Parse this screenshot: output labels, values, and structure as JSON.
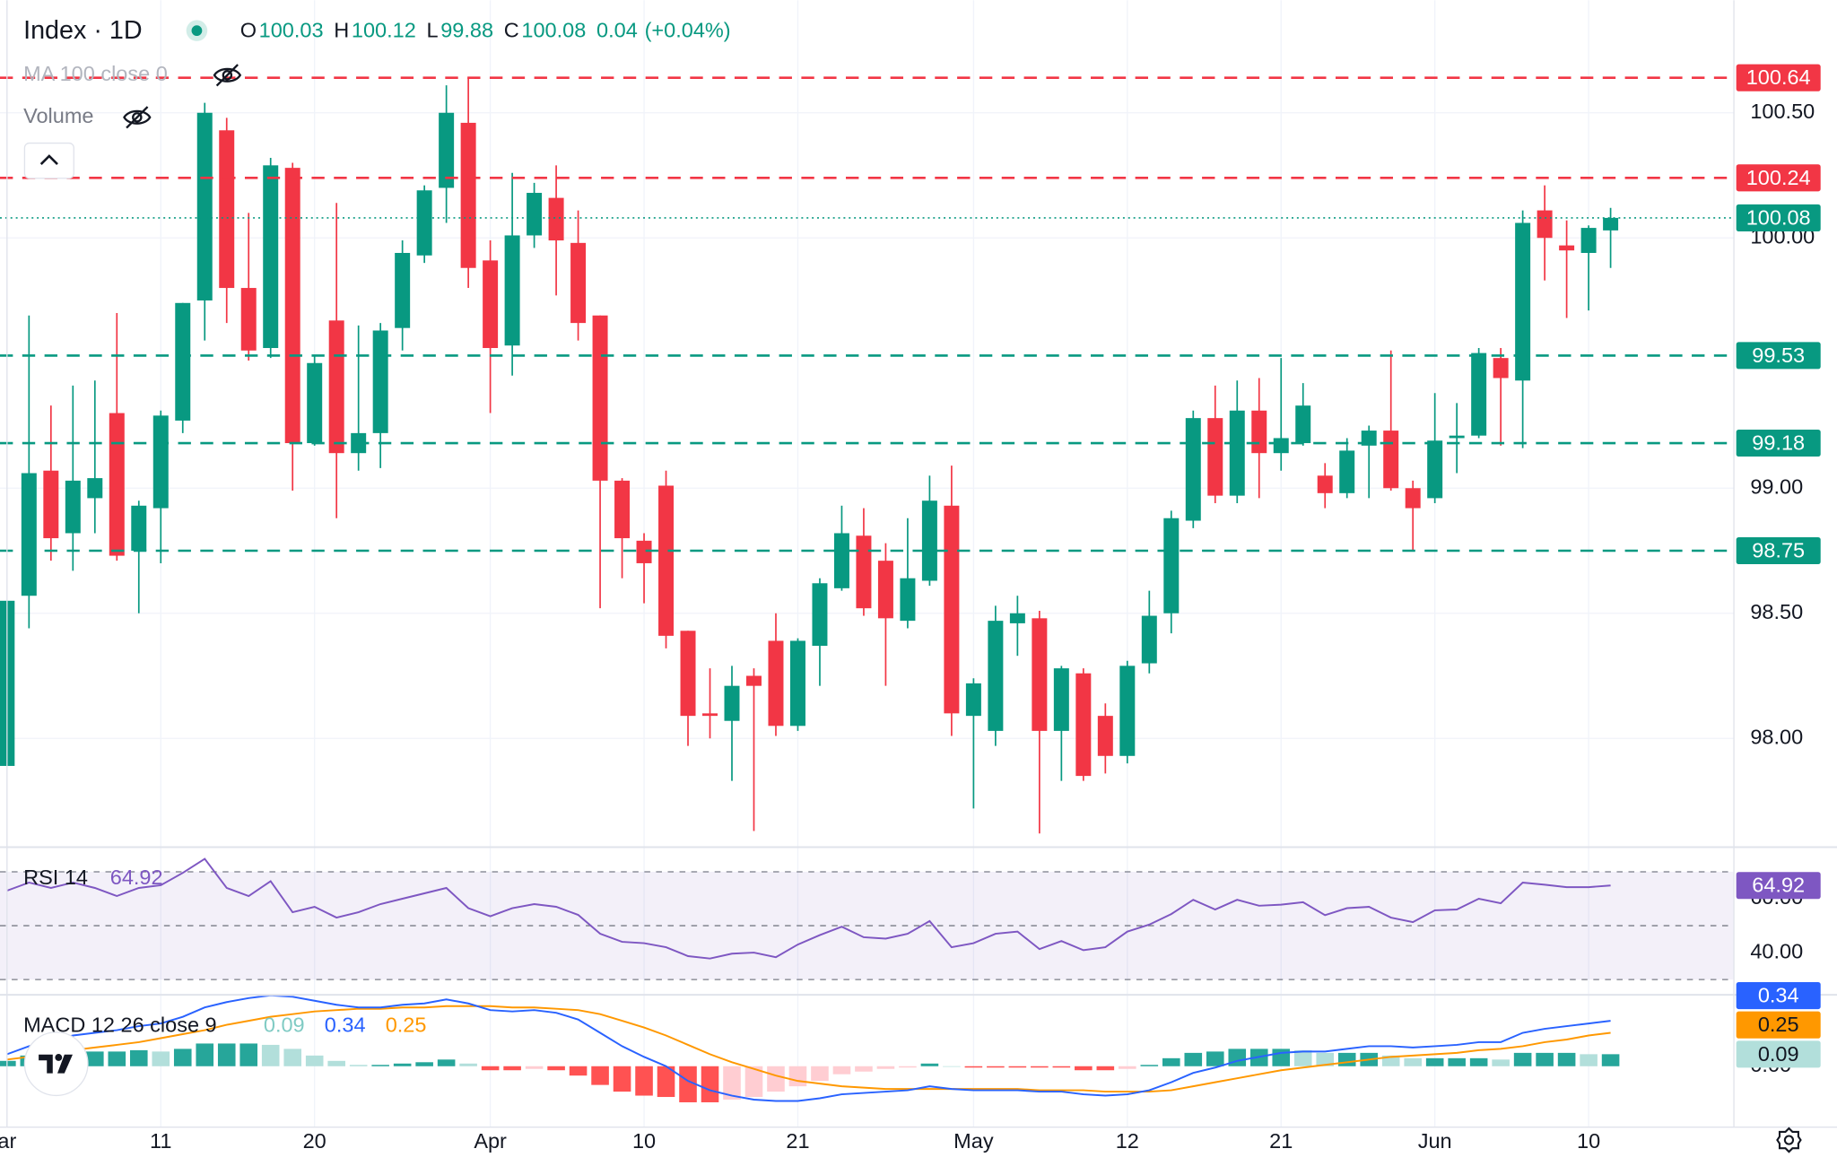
{
  "chart_data": [
    {
      "type": "candlestick",
      "title": "Index · 1D",
      "ohlc_labels": [
        "O",
        "H",
        "L",
        "C"
      ],
      "change": "0.04",
      "change_pct": "(+0.04%)",
      "indicator_labels": [
        "MA 100 close 0",
        "Volume"
      ],
      "categories": [
        "ar",
        null,
        null,
        null,
        null,
        null,
        null,
        "11",
        null,
        null,
        null,
        null,
        null,
        null,
        "20",
        null,
        null,
        null,
        null,
        null,
        null,
        null,
        "Apr",
        null,
        null,
        null,
        null,
        null,
        null,
        "10",
        null,
        null,
        null,
        null,
        null,
        null,
        "21",
        null,
        null,
        null,
        null,
        null,
        null,
        null,
        "May",
        null,
        null,
        null,
        null,
        null,
        null,
        "12",
        null,
        null,
        null,
        null,
        null,
        null,
        "21",
        null,
        null,
        null,
        null,
        null,
        null,
        "Jun",
        null,
        null,
        null,
        null,
        null,
        null,
        "10",
        null
      ],
      "open": [
        97.89,
        98.57,
        99.07,
        98.82,
        98.96,
        99.3,
        98.75,
        98.92,
        99.27,
        99.75,
        100.43,
        99.8,
        99.56,
        100.28,
        99.18,
        99.67,
        99.14,
        99.22,
        99.64,
        99.93,
        100.2,
        100.46,
        99.91,
        99.57,
        100.01,
        100.16,
        99.98,
        99.69,
        99.03,
        98.79,
        99.01,
        98.43,
        98.1,
        98.07,
        98.25,
        98.39,
        98.05,
        98.37,
        98.6,
        98.81,
        98.71,
        98.47,
        98.63,
        98.93,
        98.09,
        98.03,
        98.46,
        98.48,
        98.03,
        98.26,
        98.09,
        97.93,
        98.3,
        98.5,
        98.87,
        99.28,
        98.97,
        99.31,
        99.14,
        99.18,
        99.05,
        98.98,
        99.17,
        99.23,
        99.0,
        98.96,
        99.2,
        99.21,
        99.52,
        99.43,
        100.11,
        99.97,
        99.94,
        100.03
      ],
      "high": [
        98.55,
        99.69,
        99.33,
        99.41,
        99.43,
        99.7,
        98.95,
        99.31,
        99.74,
        100.54,
        100.48,
        100.1,
        100.32,
        100.3,
        99.53,
        100.14,
        99.65,
        99.66,
        99.99,
        100.21,
        100.61,
        100.64,
        99.99,
        100.26,
        100.22,
        100.29,
        100.11,
        99.69,
        99.04,
        98.82,
        99.07,
        98.43,
        98.28,
        98.29,
        98.28,
        98.5,
        98.4,
        98.64,
        98.93,
        98.92,
        98.78,
        98.88,
        99.05,
        99.09,
        98.24,
        98.53,
        98.57,
        98.51,
        98.29,
        98.28,
        98.14,
        98.31,
        98.59,
        98.91,
        99.31,
        99.41,
        99.43,
        99.44,
        99.52,
        99.42,
        99.1,
        99.2,
        99.25,
        99.55,
        99.03,
        99.38,
        99.34,
        99.56,
        99.56,
        100.11,
        100.21,
        100.07,
        100.05,
        100.12
      ],
      "low": [
        97.89,
        98.44,
        98.71,
        98.67,
        98.82,
        98.71,
        98.5,
        98.7,
        99.22,
        99.59,
        99.66,
        99.51,
        99.52,
        98.99,
        99.17,
        98.88,
        99.07,
        99.08,
        99.55,
        99.9,
        100.06,
        99.8,
        99.3,
        99.45,
        99.96,
        99.77,
        99.59,
        98.52,
        98.64,
        98.54,
        98.36,
        97.97,
        98.0,
        97.83,
        97.63,
        98.01,
        98.03,
        98.21,
        98.59,
        98.49,
        98.21,
        98.44,
        98.61,
        98.01,
        97.72,
        97.97,
        98.33,
        97.62,
        97.83,
        97.83,
        97.86,
        97.9,
        98.26,
        98.42,
        98.84,
        98.94,
        98.94,
        98.96,
        99.07,
        99.17,
        98.92,
        98.96,
        98.96,
        98.99,
        98.75,
        98.94,
        99.06,
        99.2,
        99.17,
        99.16,
        99.83,
        99.68,
        99.71,
        99.88
      ],
      "close": [
        98.55,
        99.06,
        98.8,
        99.03,
        99.04,
        98.73,
        98.93,
        99.29,
        99.74,
        100.5,
        99.8,
        99.55,
        100.29,
        99.18,
        99.5,
        99.14,
        99.22,
        99.63,
        99.94,
        100.19,
        100.5,
        99.88,
        99.56,
        100.01,
        100.18,
        99.99,
        99.66,
        99.03,
        98.8,
        98.7,
        98.41,
        98.09,
        98.09,
        98.21,
        98.21,
        98.05,
        98.39,
        98.62,
        98.82,
        98.52,
        98.48,
        98.64,
        98.95,
        98.1,
        98.22,
        98.47,
        98.5,
        98.03,
        98.28,
        97.85,
        97.93,
        98.29,
        98.49,
        98.88,
        99.28,
        98.97,
        99.31,
        99.14,
        99.2,
        99.33,
        98.98,
        99.15,
        99.23,
        99.0,
        98.92,
        99.19,
        99.21,
        99.54,
        99.44,
        100.06,
        100.0,
        99.95,
        100.04,
        100.08
      ],
      "up_color": "#089981",
      "down_color": "#f23645",
      "ylim": [
        97.57,
        100.95
      ],
      "yticks": [
        {
          "value": 98,
          "label": "98.00"
        },
        {
          "value": 98.5,
          "label": "98.50"
        },
        {
          "value": 99,
          "label": "99.00"
        },
        {
          "value": 100,
          "label": "100.00"
        },
        {
          "value": 100.5,
          "label": "100.50"
        }
      ],
      "grid": true,
      "levels": [
        {
          "value": 100.64,
          "color": "#f23645"
        },
        {
          "value": 100.24,
          "color": "#f23645"
        },
        {
          "value": 99.53,
          "color": "#089981"
        },
        {
          "value": 99.18,
          "color": "#089981"
        },
        {
          "value": 98.75,
          "color": "#089981"
        }
      ]
    },
    {
      "type": "line",
      "title": "RSI 14",
      "color": "#7e57c2",
      "values": [
        63,
        66,
        64,
        66,
        64,
        61,
        64,
        65,
        69.6,
        74.8,
        64,
        61,
        66.5,
        55,
        57,
        53,
        55,
        58,
        60,
        62,
        64,
        56.5,
        53.5,
        56.5,
        58,
        57,
        54,
        47,
        44,
        43.5,
        42,
        38.7,
        37.8,
        39.6,
        40,
        38.3,
        43,
        46.5,
        49.6,
        45.7,
        45.2,
        47,
        51.7,
        42,
        43.5,
        47,
        47.8,
        41.3,
        44.3,
        40.9,
        42,
        47.8,
        50.4,
        54.3,
        59.6,
        56,
        59.6,
        57.4,
        57.8,
        58.7,
        53.9,
        56.5,
        57,
        53,
        51.3,
        55.7,
        56,
        60,
        58.3,
        66,
        65.2,
        64.3,
        64.3,
        64.92
      ],
      "ylim": [
        24.78,
        78.7
      ],
      "yticks": [
        {
          "value": 40,
          "label": "40.00"
        },
        {
          "value": 60,
          "label": "60.00"
        }
      ],
      "levels": [
        70,
        50,
        30
      ]
    },
    {
      "type": "macd",
      "title": "MACD 12 26 close 9",
      "ylim": [
        -0.456,
        0.526
      ],
      "yticks": [
        {
          "value": 0,
          "label": "0.00"
        }
      ],
      "macd": {
        "color": "#2962ff",
        "values": [
          0.09,
          0.15,
          0.19,
          0.23,
          0.25,
          0.27,
          0.3,
          0.32,
          0.37,
          0.44,
          0.48,
          0.51,
          0.53,
          0.52,
          0.49,
          0.46,
          0.44,
          0.44,
          0.46,
          0.47,
          0.5,
          0.47,
          0.42,
          0.41,
          0.42,
          0.4,
          0.35,
          0.25,
          0.15,
          0.07,
          0.0,
          -0.11,
          -0.18,
          -0.22,
          -0.25,
          -0.26,
          -0.26,
          -0.24,
          -0.21,
          -0.2,
          -0.19,
          -0.18,
          -0.15,
          -0.17,
          -0.18,
          -0.18,
          -0.18,
          -0.19,
          -0.19,
          -0.21,
          -0.22,
          -0.21,
          -0.18,
          -0.12,
          -0.05,
          -0.01,
          0.04,
          0.07,
          0.1,
          0.11,
          0.11,
          0.13,
          0.15,
          0.15,
          0.14,
          0.15,
          0.16,
          0.18,
          0.18,
          0.25,
          0.28,
          0.3,
          0.32,
          0.34
        ]
      },
      "signal": {
        "color": "#ff9800",
        "values": [
          0.05,
          0.07,
          0.09,
          0.12,
          0.14,
          0.16,
          0.18,
          0.21,
          0.24,
          0.27,
          0.31,
          0.34,
          0.37,
          0.39,
          0.41,
          0.42,
          0.43,
          0.43,
          0.44,
          0.44,
          0.45,
          0.45,
          0.45,
          0.44,
          0.44,
          0.43,
          0.42,
          0.39,
          0.34,
          0.29,
          0.23,
          0.16,
          0.09,
          0.03,
          -0.02,
          -0.07,
          -0.11,
          -0.13,
          -0.15,
          -0.16,
          -0.17,
          -0.17,
          -0.17,
          -0.17,
          -0.17,
          -0.17,
          -0.17,
          -0.18,
          -0.18,
          -0.18,
          -0.19,
          -0.19,
          -0.19,
          -0.18,
          -0.15,
          -0.12,
          -0.09,
          -0.06,
          -0.03,
          -0.01,
          0.01,
          0.03,
          0.05,
          0.07,
          0.08,
          0.09,
          0.1,
          0.12,
          0.13,
          0.15,
          0.18,
          0.2,
          0.23,
          0.25
        ]
      },
      "histogram": {
        "colors": [
          "#26a69a",
          "#b2dfdb",
          "#ff5252",
          "#ffcdd2"
        ],
        "values": [
          0.04,
          0.08,
          0.1,
          0.11,
          0.11,
          0.11,
          0.12,
          0.11,
          0.13,
          0.17,
          0.17,
          0.17,
          0.16,
          0.13,
          0.08,
          0.04,
          0.01,
          0.01,
          0.02,
          0.03,
          0.05,
          0.02,
          -0.03,
          -0.03,
          -0.02,
          -0.03,
          -0.07,
          -0.14,
          -0.19,
          -0.22,
          -0.23,
          -0.27,
          -0.27,
          -0.25,
          -0.23,
          -0.19,
          -0.15,
          -0.11,
          -0.06,
          -0.04,
          -0.02,
          -0.01,
          0.02,
          0.0,
          -0.01,
          -0.01,
          -0.01,
          -0.01,
          -0.01,
          -0.03,
          -0.03,
          -0.02,
          0.01,
          0.06,
          0.1,
          0.11,
          0.13,
          0.13,
          0.13,
          0.12,
          0.1,
          0.1,
          0.1,
          0.08,
          0.06,
          0.06,
          0.06,
          0.06,
          0.05,
          0.1,
          0.1,
          0.1,
          0.09,
          0.09
        ]
      }
    }
  ]
}
